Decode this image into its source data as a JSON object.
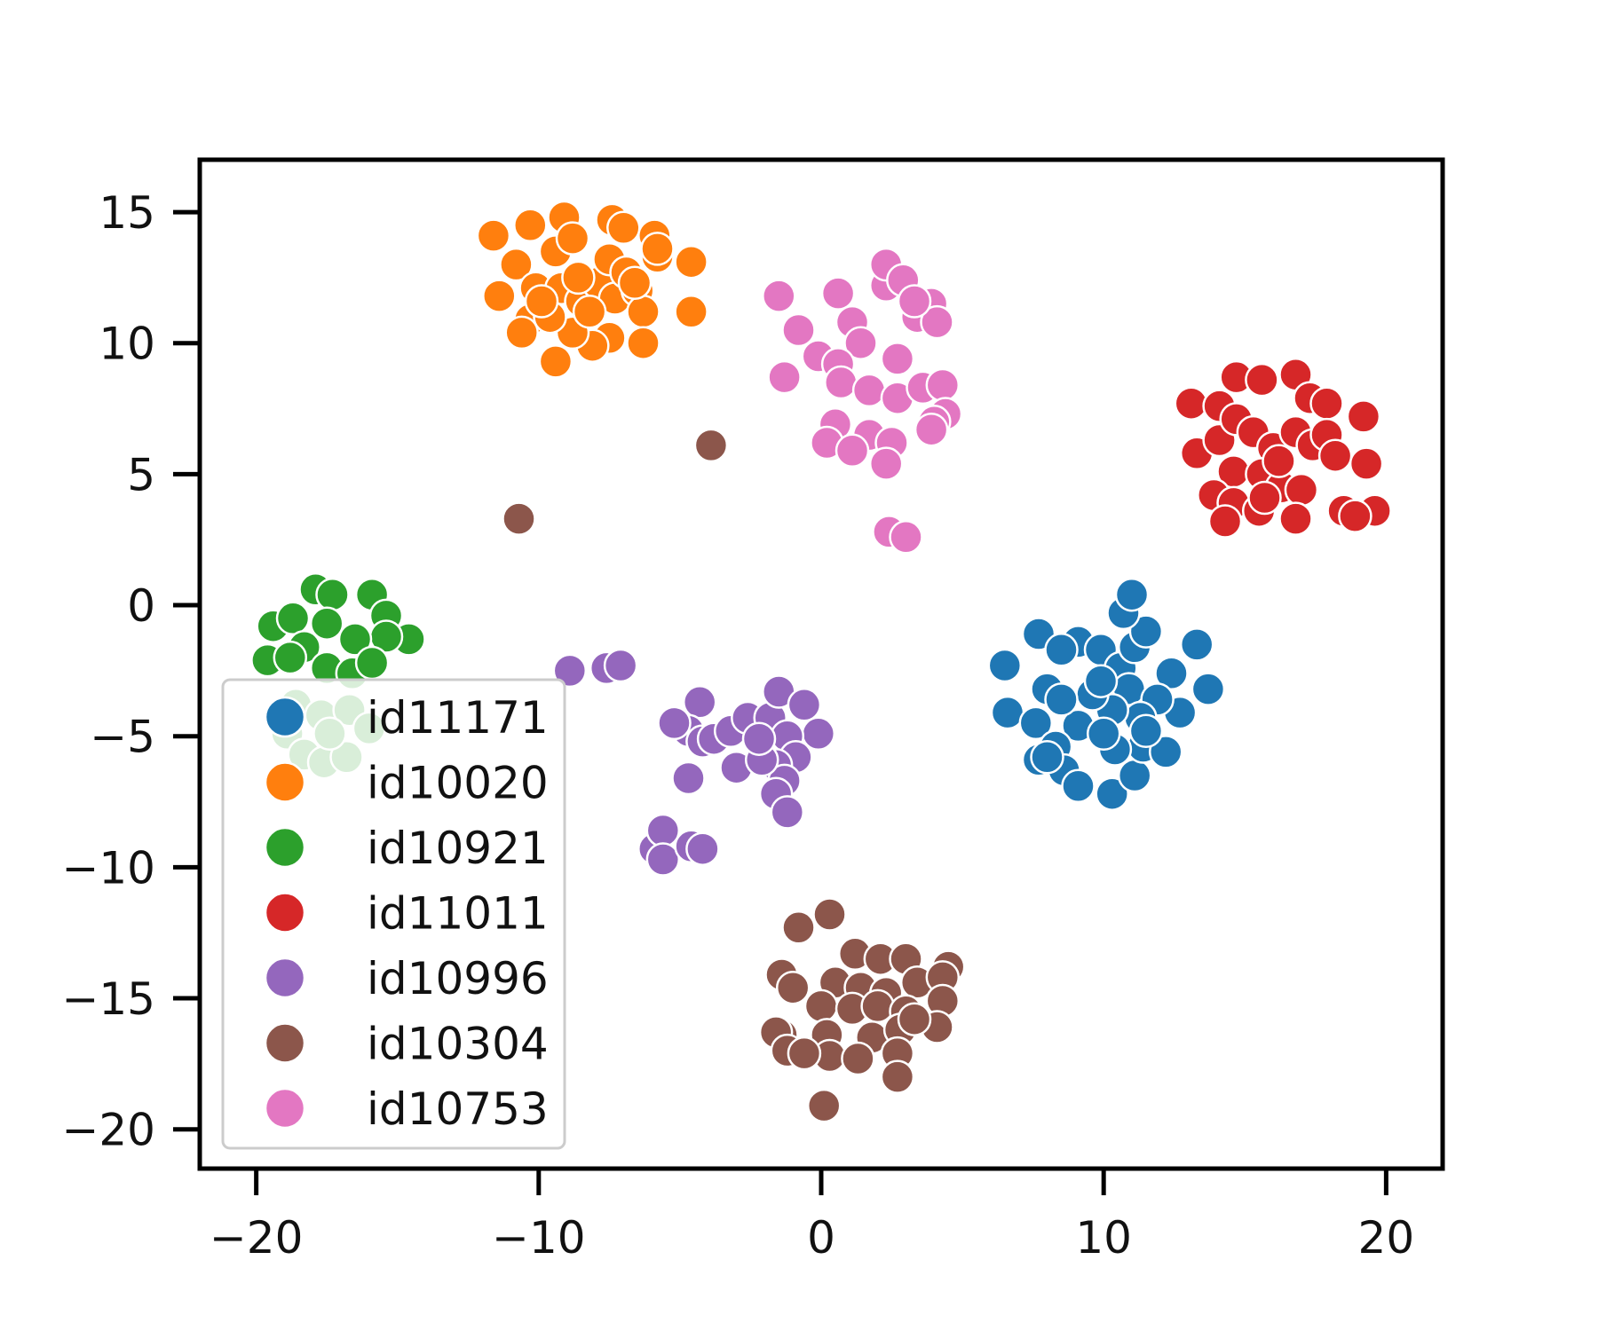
{
  "chart_data": {
    "type": "scatter",
    "title": "",
    "xlabel": "",
    "ylabel": "",
    "xlim": [
      -22,
      22
    ],
    "ylim": [
      -21.5,
      17
    ],
    "grid": false,
    "legend_position": "lower-left",
    "xticks": [
      -20,
      -10,
      0,
      10,
      20
    ],
    "yticks": [
      15,
      10,
      5,
      0,
      -5,
      -10,
      -15,
      -20
    ],
    "xtick_labels": [
      "−20",
      "−10",
      "0",
      "10",
      "20"
    ],
    "ytick_labels": [
      "15",
      "10",
      "5",
      "0",
      "−5",
      "−10",
      "−15",
      "−20"
    ],
    "series": [
      {
        "name": "id11171",
        "color": "#1f77b4",
        "points": [
          [
            6.5,
            -2.3
          ],
          [
            7.7,
            -1.1
          ],
          [
            6.6,
            -4.1
          ],
          [
            8.0,
            -3.2
          ],
          [
            9.1,
            -1.4
          ],
          [
            9.9,
            -1.7
          ],
          [
            10.6,
            -2.4
          ],
          [
            10.9,
            -3.2
          ],
          [
            11.1,
            -1.6
          ],
          [
            11.5,
            -1.0
          ],
          [
            12.4,
            -2.6
          ],
          [
            13.3,
            -1.5
          ],
          [
            13.7,
            -3.2
          ],
          [
            12.7,
            -4.1
          ],
          [
            11.9,
            -3.6
          ],
          [
            11.3,
            -4.3
          ],
          [
            10.3,
            -4.0
          ],
          [
            9.6,
            -3.4
          ],
          [
            9.1,
            -4.6
          ],
          [
            8.5,
            -3.6
          ],
          [
            7.6,
            -4.5
          ],
          [
            8.3,
            -5.4
          ],
          [
            7.7,
            -5.9
          ],
          [
            8.6,
            -6.3
          ],
          [
            9.1,
            -6.9
          ],
          [
            10.3,
            -7.2
          ],
          [
            11.1,
            -6.5
          ],
          [
            11.4,
            -5.4
          ],
          [
            12.2,
            -5.6
          ],
          [
            10.4,
            -5.5
          ],
          [
            10.0,
            -4.9
          ],
          [
            9.9,
            -2.9
          ],
          [
            10.7,
            -0.3
          ],
          [
            11.0,
            0.4
          ],
          [
            8.5,
            -1.7
          ],
          [
            11.5,
            -4.8
          ],
          [
            8.0,
            -5.8
          ]
        ]
      },
      {
        "name": "id10020",
        "color": "#ff7f0e",
        "points": [
          [
            -11.6,
            14.1
          ],
          [
            -10.3,
            14.5
          ],
          [
            -9.1,
            14.8
          ],
          [
            -7.4,
            14.7
          ],
          [
            -5.9,
            14.1
          ],
          [
            -5.8,
            13.3
          ],
          [
            -4.6,
            13.1
          ],
          [
            -4.6,
            11.2
          ],
          [
            -11.4,
            11.8
          ],
          [
            -10.8,
            13.0
          ],
          [
            -10.1,
            12.1
          ],
          [
            -9.4,
            13.5
          ],
          [
            -9.2,
            12.1
          ],
          [
            -8.5,
            11.6
          ],
          [
            -7.9,
            12.3
          ],
          [
            -7.5,
            13.2
          ],
          [
            -7.3,
            11.7
          ],
          [
            -7.0,
            14.4
          ],
          [
            -6.5,
            12.0
          ],
          [
            -6.3,
            11.2
          ],
          [
            -7.5,
            10.2
          ],
          [
            -8.1,
            9.9
          ],
          [
            -8.8,
            10.4
          ],
          [
            -9.4,
            9.3
          ],
          [
            -10.3,
            10.9
          ],
          [
            -10.6,
            10.4
          ],
          [
            -9.6,
            11.0
          ],
          [
            -8.2,
            11.2
          ],
          [
            -6.3,
            10.0
          ],
          [
            -5.8,
            13.6
          ],
          [
            -8.6,
            12.5
          ],
          [
            -9.9,
            11.6
          ],
          [
            -6.9,
            12.7
          ],
          [
            -6.6,
            12.3
          ],
          [
            -8.8,
            14.0
          ]
        ]
      },
      {
        "name": "id10921",
        "color": "#2ca02c",
        "points": [
          [
            -19.4,
            -0.8
          ],
          [
            -18.7,
            -0.5
          ],
          [
            -17.9,
            0.6
          ],
          [
            -17.3,
            0.4
          ],
          [
            -15.9,
            0.4
          ],
          [
            -15.4,
            -0.4
          ],
          [
            -14.6,
            -1.3
          ],
          [
            -15.4,
            -1.2
          ],
          [
            -16.5,
            -1.3
          ],
          [
            -17.5,
            -0.7
          ],
          [
            -18.3,
            -1.6
          ],
          [
            -19.6,
            -2.1
          ],
          [
            -18.8,
            -2.0
          ],
          [
            -17.5,
            -2.4
          ],
          [
            -16.6,
            -2.6
          ],
          [
            -15.9,
            -2.2
          ],
          [
            -18.6,
            -3.8
          ],
          [
            -17.7,
            -4.2
          ],
          [
            -16.7,
            -4.0
          ],
          [
            -16.0,
            -4.7
          ],
          [
            -18.9,
            -4.9
          ],
          [
            -18.3,
            -5.7
          ],
          [
            -17.6,
            -6.0
          ],
          [
            -16.8,
            -5.8
          ],
          [
            -17.4,
            -4.9
          ]
        ]
      },
      {
        "name": "id11011",
        "color": "#d62728",
        "points": [
          [
            13.1,
            7.7
          ],
          [
            14.1,
            7.6
          ],
          [
            14.7,
            8.7
          ],
          [
            15.6,
            8.6
          ],
          [
            16.8,
            8.8
          ],
          [
            17.3,
            7.9
          ],
          [
            17.9,
            7.7
          ],
          [
            19.2,
            7.2
          ],
          [
            13.3,
            5.8
          ],
          [
            14.1,
            6.3
          ],
          [
            14.7,
            7.1
          ],
          [
            15.3,
            6.6
          ],
          [
            16.0,
            6.0
          ],
          [
            16.8,
            6.6
          ],
          [
            17.4,
            6.1
          ],
          [
            17.9,
            6.5
          ],
          [
            18.2,
            5.7
          ],
          [
            19.3,
            5.4
          ],
          [
            14.6,
            5.1
          ],
          [
            15.6,
            5.0
          ],
          [
            16.3,
            4.5
          ],
          [
            17.0,
            4.4
          ],
          [
            13.9,
            4.2
          ],
          [
            14.6,
            3.9
          ],
          [
            15.5,
            3.6
          ],
          [
            16.8,
            3.3
          ],
          [
            18.5,
            3.6
          ],
          [
            19.6,
            3.6
          ],
          [
            14.3,
            3.2
          ],
          [
            15.7,
            4.1
          ],
          [
            16.2,
            5.5
          ],
          [
            18.9,
            3.4
          ]
        ]
      },
      {
        "name": "id10996",
        "color": "#9467bd",
        "points": [
          [
            -8.9,
            -2.5
          ],
          [
            -7.6,
            -2.4
          ],
          [
            -7.1,
            -2.3
          ],
          [
            -4.3,
            -3.7
          ],
          [
            -4.7,
            -4.8
          ],
          [
            -4.2,
            -5.2
          ],
          [
            -3.8,
            -5.1
          ],
          [
            -3.2,
            -4.8
          ],
          [
            -2.6,
            -4.3
          ],
          [
            -1.8,
            -4.3
          ],
          [
            -1.5,
            -3.3
          ],
          [
            -0.6,
            -3.8
          ],
          [
            -0.1,
            -4.9
          ],
          [
            -1.2,
            -5.0
          ],
          [
            -0.9,
            -5.8
          ],
          [
            -1.6,
            -6.1
          ],
          [
            -1.3,
            -6.7
          ],
          [
            -3.0,
            -6.2
          ],
          [
            -2.1,
            -5.9
          ],
          [
            -4.7,
            -6.6
          ],
          [
            -1.6,
            -7.2
          ],
          [
            -1.2,
            -7.9
          ],
          [
            -5.9,
            -9.3
          ],
          [
            -5.6,
            -8.6
          ],
          [
            -5.6,
            -9.7
          ],
          [
            -4.6,
            -9.2
          ],
          [
            -4.2,
            -9.3
          ],
          [
            -5.2,
            -4.5
          ],
          [
            -2.2,
            -5.1
          ]
        ]
      },
      {
        "name": "id10304",
        "color": "#8c564b",
        "points": [
          [
            -3.9,
            6.1
          ],
          [
            -10.7,
            3.3
          ],
          [
            -0.8,
            -12.3
          ],
          [
            0.3,
            -11.8
          ],
          [
            1.2,
            -13.3
          ],
          [
            2.1,
            -13.5
          ],
          [
            3.0,
            -13.5
          ],
          [
            4.5,
            -13.8
          ],
          [
            -1.4,
            -14.1
          ],
          [
            -1.0,
            -14.6
          ],
          [
            0.5,
            -14.4
          ],
          [
            1.4,
            -14.6
          ],
          [
            2.3,
            -14.8
          ],
          [
            3.4,
            -14.4
          ],
          [
            4.3,
            -14.2
          ],
          [
            0.0,
            -15.3
          ],
          [
            1.1,
            -15.4
          ],
          [
            2.0,
            -15.3
          ],
          [
            3.0,
            -15.5
          ],
          [
            4.3,
            -15.1
          ],
          [
            -1.4,
            -16.4
          ],
          [
            -1.6,
            -16.3
          ],
          [
            0.2,
            -16.4
          ],
          [
            1.8,
            -16.5
          ],
          [
            2.8,
            -16.2
          ],
          [
            4.1,
            -16.1
          ],
          [
            -1.2,
            -17.0
          ],
          [
            0.3,
            -17.2
          ],
          [
            1.3,
            -17.3
          ],
          [
            2.7,
            -17.1
          ],
          [
            2.7,
            -18.0
          ],
          [
            0.1,
            -19.1
          ],
          [
            -0.6,
            -17.1
          ],
          [
            3.3,
            -15.8
          ]
        ]
      },
      {
        "name": "id10753",
        "color": "#e377c2",
        "points": [
          [
            -1.5,
            11.8
          ],
          [
            -0.8,
            10.5
          ],
          [
            0.6,
            11.9
          ],
          [
            1.1,
            10.8
          ],
          [
            2.3,
            12.2
          ],
          [
            2.3,
            13.0
          ],
          [
            2.9,
            12.4
          ],
          [
            3.4,
            11.0
          ],
          [
            3.9,
            11.5
          ],
          [
            4.1,
            10.8
          ],
          [
            1.4,
            10.0
          ],
          [
            2.7,
            9.4
          ],
          [
            -1.3,
            8.7
          ],
          [
            -0.1,
            9.5
          ],
          [
            0.6,
            9.2
          ],
          [
            0.7,
            8.5
          ],
          [
            1.7,
            8.2
          ],
          [
            2.7,
            7.9
          ],
          [
            3.6,
            8.3
          ],
          [
            4.3,
            8.4
          ],
          [
            4.4,
            7.3
          ],
          [
            4.0,
            7.0
          ],
          [
            0.5,
            6.9
          ],
          [
            1.7,
            6.5
          ],
          [
            2.5,
            6.2
          ],
          [
            3.9,
            6.7
          ],
          [
            0.2,
            6.2
          ],
          [
            1.1,
            5.9
          ],
          [
            2.3,
            5.4
          ],
          [
            2.4,
            2.8
          ],
          [
            3.0,
            2.6
          ],
          [
            3.3,
            11.6
          ]
        ]
      }
    ]
  }
}
